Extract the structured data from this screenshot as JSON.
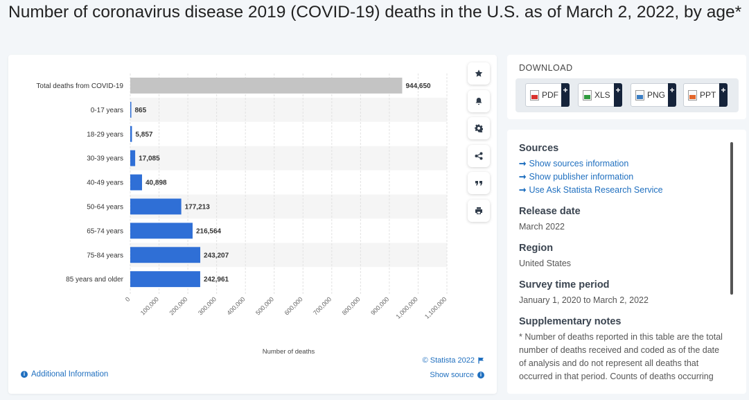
{
  "page": {
    "title": "Number of coronavirus disease 2019 (COVID-19) deaths in the U.S. as of March 2, 2022, by age*"
  },
  "chart_data": {
    "type": "bar",
    "orientation": "horizontal",
    "categories": [
      "Total deaths from COVID-19",
      "0-17 years",
      "18-29 years",
      "30-39 years",
      "40-49 years",
      "50-64 years",
      "65-74 years",
      "75-84 years",
      "85 years and older"
    ],
    "values": [
      944650,
      865,
      5857,
      17085,
      40898,
      177213,
      216564,
      243207,
      242961
    ],
    "value_labels": [
      "944,650",
      "865",
      "5,857",
      "17,085",
      "40,898",
      "177,213",
      "216,564",
      "243,207",
      "242,961"
    ],
    "bar_colors": [
      "#c4c4c4",
      "#2f6fd6",
      "#2f6fd6",
      "#2f6fd6",
      "#2f6fd6",
      "#2f6fd6",
      "#2f6fd6",
      "#2f6fd6",
      "#2f6fd6"
    ],
    "xlabel": "Number of deaths",
    "xlim": [
      0,
      1100000
    ],
    "xticks": [
      0,
      100000,
      200000,
      300000,
      400000,
      500000,
      600000,
      700000,
      800000,
      900000,
      1000000,
      1100000
    ],
    "xtick_labels": [
      "0",
      "100,000",
      "200,000",
      "300,000",
      "400,000",
      "500,000",
      "600,000",
      "700,000",
      "800,000",
      "900,000",
      "1,000,000",
      "1,100,000"
    ],
    "grid": true,
    "alternating_row_shading": true
  },
  "chart_card": {
    "credit": "© Statista 2022",
    "show_source": "Show source",
    "additional_info": "Additional Information",
    "actions": [
      "star-icon",
      "bell-icon",
      "gear-icon",
      "share-icon",
      "quote-icon",
      "print-icon"
    ]
  },
  "download": {
    "title": "DOWNLOAD",
    "buttons": [
      {
        "label": "PDF",
        "icon": "pdf-file-icon"
      },
      {
        "label": "XLS",
        "icon": "xls-file-icon"
      },
      {
        "label": "PNG",
        "icon": "png-file-icon"
      },
      {
        "label": "PPT",
        "icon": "ppt-file-icon"
      }
    ],
    "plus": "+"
  },
  "info": {
    "sources_title": "Sources",
    "links": [
      "Show sources information",
      "Show publisher information",
      "Use Ask Statista Research Service"
    ],
    "release_title": "Release date",
    "release_value": "March 2022",
    "region_title": "Region",
    "region_value": "United States",
    "period_title": "Survey time period",
    "period_value": "January 1, 2020 to March 2, 2022",
    "notes_title": "Supplementary notes",
    "notes_text": "* Number of deaths reported in this table are the total number of deaths received and coded as of the date of analysis and do not represent all deaths that occurred in that period. Counts of deaths occurring before or after the reporting period"
  },
  "colors": {
    "accent": "#1f6fbf",
    "bar": "#2f6fd6",
    "total_bar": "#c4c4c4"
  }
}
